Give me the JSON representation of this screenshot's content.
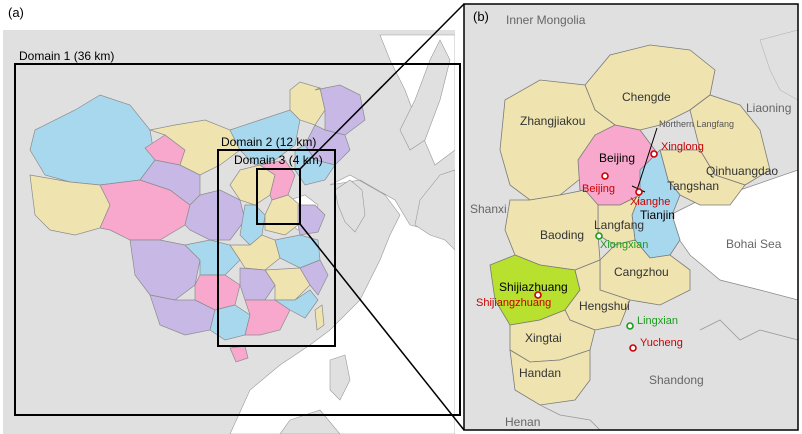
{
  "panel_a": {
    "label": "(a)",
    "domain1": "Domain 1 (36 km)",
    "domain2": "Domain 2 (12 km)",
    "domain3": "Domain 3 (4 km)"
  },
  "panel_b": {
    "label": "(b)",
    "neighbors": {
      "inner_mongolia": "Inner Mongolia",
      "liaoning": "Liaoning",
      "shanxi": "Shanxi",
      "bohai_sea": "Bohai Sea",
      "shandong": "Shandong",
      "henan": "Henan"
    },
    "cities": {
      "chengde": "Chengde",
      "zhangjiakou": "Zhangjiakou",
      "beijing": "Beijing",
      "tianjin": "Tianjin",
      "tangshan": "Tangshan",
      "qinhuangdao": "Qinhuangdao",
      "langfang": "Langfang",
      "baoding": "Baoding",
      "cangzhou": "Cangzhou",
      "shijiazhuang": "Shijiazhuang",
      "hengshui": "Hengshui",
      "xingtai": "Xingtai",
      "handan": "Handan"
    },
    "annotations": {
      "northern_langfang": "Northern Langfang"
    },
    "stations_red": {
      "xinglong": "Xinglong",
      "beijing": "Beijing",
      "xianghe": "Xianghe",
      "shijiangzhuang": "Shijiangzhuang",
      "yucheng": "Yucheng"
    },
    "stations_green": {
      "xiongxian": "Xiongxian",
      "lingxian": "Lingxian"
    }
  },
  "colors": {
    "land_gray": "#e0e0e0",
    "water": "#ffffff",
    "tan": "#efe4b0",
    "pink": "#f7a8cc",
    "cyan": "#a8d8ee",
    "lavender": "#c8b8e6",
    "lime": "#b8e02e",
    "station_red": "#cc0000",
    "station_green": "#1a9c1a"
  }
}
